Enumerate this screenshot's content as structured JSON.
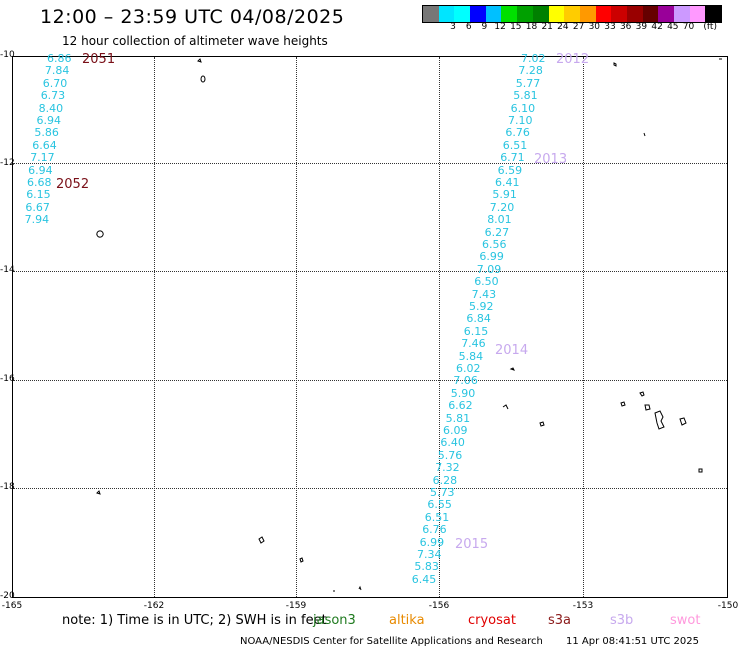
{
  "header": {
    "title": "12:00 – 23:59 UTC 04/08/2025",
    "subtitle": "12 hour collection of altimeter wave heights"
  },
  "colorbar": {
    "colors": [
      "#777777",
      "#00e5ff",
      "#00ffff",
      "#0000ff",
      "#00c0ff",
      "#00e000",
      "#00a000",
      "#008000",
      "#ffff00",
      "#ffcc00",
      "#ff9900",
      "#ff0000",
      "#cc0000",
      "#990000",
      "#660000",
      "#990099",
      "#cc99ff",
      "#ff99ff",
      "#000000"
    ],
    "labels": [
      "3",
      "6",
      "9",
      "12",
      "15",
      "18",
      "21",
      "24",
      "27",
      "30",
      "33",
      "36",
      "39",
      "42",
      "45",
      "70",
      "(ft)"
    ]
  },
  "axes": {
    "y_ticks": [
      "-10",
      "-12",
      "-14",
      "-16",
      "-18",
      "-20"
    ],
    "x_ticks": [
      "-165",
      "-162",
      "-159",
      "-156",
      "-153",
      "-150"
    ]
  },
  "cycles": {
    "c2051": "2051",
    "c2052": "2052",
    "c2012": "2012",
    "c2013": "2013",
    "c2014": "2014",
    "c2015": "2015"
  },
  "track_west": [
    "6.86",
    "7.84",
    "6.70",
    "6.73",
    "8.40",
    "6.94",
    "5.86",
    "6.64",
    "7.17",
    "6.94",
    "6.68",
    "6.15",
    "6.67",
    "7.94"
  ],
  "track_east": [
    "7.02",
    "7.28",
    "5.77",
    "5.81",
    "6.10",
    "7.10",
    "6.76",
    "6.51",
    "6.71",
    "6.59",
    "6.41",
    "5.91",
    "7.20",
    "8.01",
    "6.27",
    "6.56",
    "6.99",
    "7.09",
    "6.50",
    "7.43",
    "5.92",
    "6.84",
    "6.15",
    "7.46",
    "5.84",
    "6.02",
    "7.06",
    "5.90",
    "6.62",
    "5.81",
    "6.09",
    "6.40",
    "5.76",
    "7.32",
    "6.28",
    "5.73",
    "6.55",
    "6.51",
    "6.76",
    "6.99",
    "7.34",
    "5.83",
    "6.45"
  ],
  "footer": {
    "note": "note:  1) Time is in UTC;  2) SWH is in feet",
    "missions": [
      {
        "name": "jason3",
        "color": "#1e7a1e"
      },
      {
        "name": "altika",
        "color": "#e88a00"
      },
      {
        "name": "cryosat",
        "color": "#e00000"
      },
      {
        "name": "s3a",
        "color": "#8b1a1a"
      },
      {
        "name": "s3b",
        "color": "#c7a9ee"
      },
      {
        "name": "swot",
        "color": "#ff99dd"
      }
    ],
    "credit": "NOAA/NESDIS Center for Satellite Applications and Research",
    "timestamp": "11 Apr 08:41:51 UTC 2025"
  }
}
